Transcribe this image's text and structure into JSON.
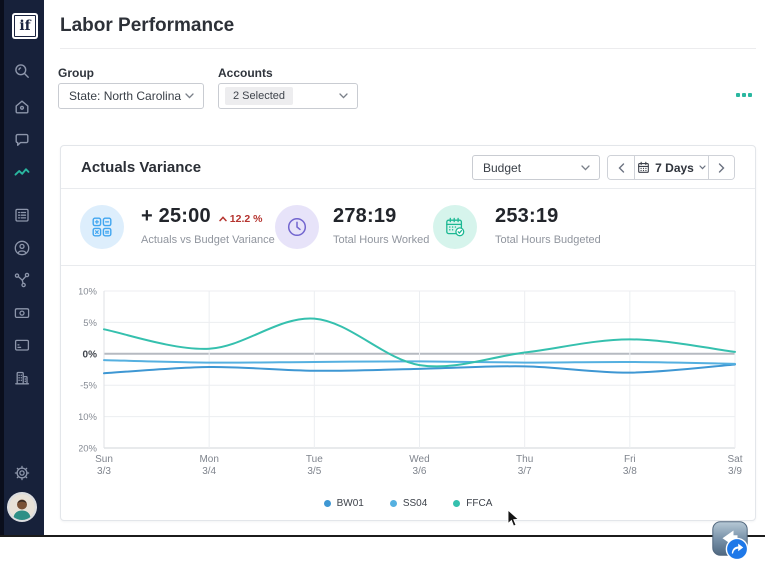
{
  "app": {
    "logo": "if"
  },
  "page": {
    "title": "Labor Performance"
  },
  "filters": {
    "group_label": "Group",
    "group_value": "State: North Carolina",
    "accounts_label": "Accounts",
    "accounts_value": "2 Selected"
  },
  "card": {
    "title": "Actuals Variance",
    "metric_select": "Budget",
    "range_label": "7 Days",
    "stats": [
      {
        "value": "+ 25:00",
        "delta": "12.2 %",
        "label": "Actuals vs Budget Variance"
      },
      {
        "value": "278:19",
        "label": "Total Hours Worked"
      },
      {
        "value": "253:19",
        "label": "Total Hours Budgeted"
      }
    ]
  },
  "chart_data": {
    "type": "line",
    "title": "Actuals Variance",
    "unit": "%",
    "grid": true,
    "legend_position": "bottom",
    "x_categories": [
      {
        "day": "Sun",
        "date": "3/3"
      },
      {
        "day": "Mon",
        "date": "3/4"
      },
      {
        "day": "Tue",
        "date": "3/5"
      },
      {
        "day": "Wed",
        "date": "3/6"
      },
      {
        "day": "Thu",
        "date": "3/7"
      },
      {
        "day": "Fri",
        "date": "3/8"
      },
      {
        "day": "Sat",
        "date": "3/9"
      }
    ],
    "y_tick_labels": [
      "10%",
      "5%",
      "0%",
      "-5%",
      "-10%",
      "-20%"
    ],
    "y_tick_values": [
      10,
      5,
      0,
      -5,
      -10,
      -20
    ],
    "series": [
      {
        "name": "BW01",
        "color": "#3e97d3",
        "values": [
          -3.1,
          -2.1,
          -2.7,
          -2.4,
          -2.0,
          -3.0,
          -1.7
        ]
      },
      {
        "name": "SS04",
        "color": "#55b0e0",
        "values": [
          -1.0,
          -1.4,
          -1.3,
          -1.2,
          -1.4,
          -1.3,
          -1.6
        ]
      },
      {
        "name": "FFCA",
        "color": "#35c0ae",
        "values": [
          3.9,
          0.8,
          5.6,
          -1.8,
          0.2,
          2.3,
          0.3
        ]
      }
    ]
  },
  "sidebar": {
    "active": "performance",
    "icons": [
      "search",
      "home",
      "messages",
      "performance",
      "schedule-list",
      "profile",
      "integrations",
      "payroll",
      "card",
      "organization",
      "settings",
      "user-avatar"
    ]
  },
  "colors": {
    "accent": "#2ab7a0",
    "danger": "#b5342f",
    "sidebar_bg": "#17213a",
    "calc_bg": "#ddeefc",
    "calc_fg": "#41a6f0",
    "clock_bg": "#e7e3f9",
    "clock_fg": "#7265cf",
    "cal_bg": "#d6f4ec",
    "cal_fg": "#1db893"
  }
}
